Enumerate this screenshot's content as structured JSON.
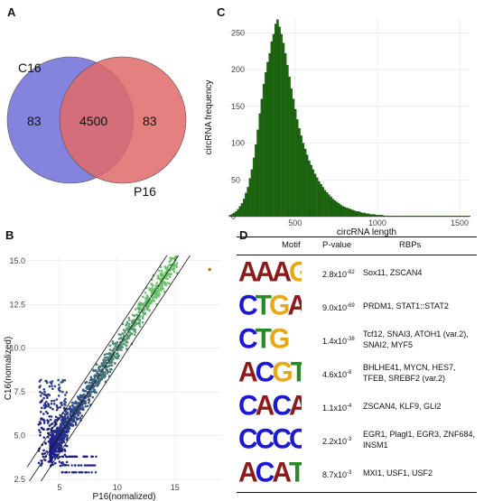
{
  "panels": {
    "a": "A",
    "b": "B",
    "c": "C",
    "d": "D"
  },
  "venn": {
    "set1_label": "C16",
    "set2_label": "P16",
    "only1": "83",
    "both": "4500",
    "only2": "83",
    "set1_color": "#6f6fd8",
    "set2_color": "#e06a6a"
  },
  "chart_data": [
    {
      "type": "histogram",
      "panel": "C",
      "xlabel": "circRNA length",
      "ylabel": "circRNA frequency",
      "xlim": [
        90,
        1560
      ],
      "ylim": [
        0,
        270
      ],
      "xticks": [
        "500",
        "1000",
        "1500"
      ],
      "xtick_values": [
        500,
        1000,
        1500
      ],
      "yticks": [
        "0",
        "50",
        "100",
        "150",
        "200",
        "250"
      ],
      "ytick_values": [
        0,
        50,
        100,
        150,
        200,
        250
      ],
      "bin_width": 12,
      "bin_start": 100,
      "bar_color": "#1f6b10",
      "values": [
        2,
        3,
        5,
        7,
        10,
        14,
        18,
        24,
        32,
        40,
        52,
        64,
        80,
        98,
        118,
        140,
        160,
        180,
        196,
        210,
        222,
        238,
        248,
        262,
        268,
        258,
        248,
        236,
        222,
        206,
        190,
        174,
        160,
        146,
        132,
        120,
        110,
        100,
        92,
        84,
        76,
        70,
        64,
        58,
        53,
        48,
        44,
        40,
        36,
        33,
        30,
        27,
        24,
        22,
        20,
        18,
        16,
        14,
        13,
        12,
        11,
        10,
        9,
        8,
        7,
        7,
        6,
        5,
        5,
        4,
        4,
        3,
        3,
        3,
        2,
        2,
        2,
        2,
        1,
        1,
        1,
        1,
        1,
        1,
        1,
        1,
        1,
        1,
        1,
        1,
        1,
        1,
        1,
        1,
        1,
        1,
        1,
        1,
        1,
        1,
        1,
        1,
        1,
        1,
        1,
        1,
        1,
        1,
        1,
        1,
        1,
        1,
        1,
        1,
        1,
        1,
        1,
        1,
        1,
        1,
        1,
        1
      ]
    },
    {
      "type": "scatter",
      "panel": "B",
      "xlabel": "P16(nomalized)",
      "ylabel": "C16(nomalized)",
      "xlim": [
        2.2,
        19
      ],
      "ylim": [
        2.4,
        15.3
      ],
      "xticks": [
        "5",
        "10",
        "15"
      ],
      "xtick_values": [
        5,
        10,
        15
      ],
      "yticks": [
        "2.5",
        "5.0",
        "7.5",
        "10.0",
        "12.5",
        "15.0"
      ],
      "ytick_values": [
        2.5,
        5.0,
        7.5,
        10.0,
        12.5,
        15.0
      ],
      "diagonal_offset": 1,
      "color_low": "#1a1a8c",
      "color_high": "#6cc36c",
      "outlier_color": "#b8860b",
      "outlier": [
        18,
        14.5
      ]
    }
  ],
  "table": {
    "headers": [
      "Motif",
      "P-value",
      "RBPs"
    ],
    "rows": [
      {
        "motif": "AAAGAAA",
        "p_base": "2.8x10",
        "p_exp": "-82",
        "rbps": "Sox11, ZSCAN4"
      },
      {
        "motif": "CTGAA",
        "p_base": "9.0x10",
        "p_exp": "-69",
        "rbps": "PRDM1, STAT1::STAT2"
      },
      {
        "motif": "CTG",
        "p_base": "1.4x10",
        "p_exp": "-38",
        "rbps": "Tcf12, SNAI3, ATOH1 (var.2), SNAI2, MYF5"
      },
      {
        "motif": "ACGTGT",
        "p_base": "4.6x10",
        "p_exp": "-8",
        "rbps": "BHLHE41, MYCN, HES7, TFEB, SREBF2 (var.2)"
      },
      {
        "motif": "CACACACA",
        "p_base": "1.1x10",
        "p_exp": "-4",
        "rbps": "ZSCAN4, KLF9, GLI2"
      },
      {
        "motif": "CCCCACCC",
        "p_base": "2.2x10",
        "p_exp": "-3",
        "rbps": "EGR1, Plagl1, EGR3, ZNF684, INSM1"
      },
      {
        "motif": "ACATGA",
        "p_base": "8.7x10",
        "p_exp": "-3",
        "rbps": "MXI1, USF1, USF2"
      }
    ],
    "base_colors": {
      "A": "#8b1a1a",
      "C": "#1a1ad0",
      "G": "#e6a817",
      "T": "#2a8a2a"
    }
  }
}
